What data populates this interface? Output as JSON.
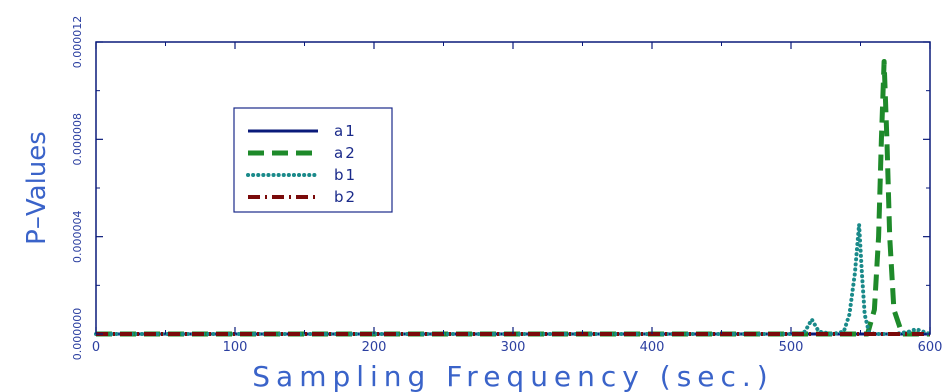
{
  "chart_data": {
    "type": "line",
    "title": "",
    "xlabel": "Sampling Frequency (sec.)",
    "ylabel": "P–Values",
    "xlim": [
      0,
      600
    ],
    "ylim": [
      0,
      1.2e-05
    ],
    "xticks": [
      0,
      100,
      200,
      300,
      400,
      500,
      600
    ],
    "xtick_labels": [
      "0",
      "100",
      "200",
      "300",
      "400",
      "500",
      "600"
    ],
    "yticks": [
      0,
      4e-06,
      8e-06,
      1.2e-05
    ],
    "ytick_labels": [
      "0.000000",
      "0.000004",
      "0.000008",
      "0.000012"
    ],
    "grid": false,
    "legend": "upper-left-inside",
    "series": [
      {
        "name": "a1",
        "color": "#0a1a7a",
        "dash": "solid",
        "x": [
          0,
          100,
          200,
          300,
          400,
          500,
          600
        ],
        "y": [
          0,
          0,
          0,
          0,
          0,
          0,
          0
        ]
      },
      {
        "name": "a2",
        "color": "#1e8a2a",
        "dash": "dashed",
        "x": [
          0,
          100,
          200,
          300,
          400,
          500,
          540,
          555,
          560,
          563,
          565,
          567,
          569,
          571,
          574,
          580,
          600
        ],
        "y": [
          0,
          0,
          0,
          0,
          0,
          0,
          0,
          0,
          1e-06,
          4e-06,
          8e-06,
          1.12e-05,
          8e-06,
          4e-06,
          1e-06,
          0,
          0
        ]
      },
      {
        "name": "b1",
        "color": "#1a8a8a",
        "dash": "dotted",
        "x": [
          0,
          100,
          200,
          300,
          400,
          500,
          505,
          510,
          515,
          520,
          530,
          538,
          542,
          546,
          549,
          551,
          553,
          556,
          560,
          565,
          575,
          585,
          590,
          595,
          600
        ],
        "y": [
          0,
          0,
          0,
          0,
          0,
          0,
          0,
          1e-07,
          6e-07,
          1e-07,
          0,
          1e-07,
          8e-07,
          2.5e-06,
          4.5e-06,
          2.5e-06,
          8e-07,
          1e-07,
          0,
          0,
          0,
          1e-07,
          2e-07,
          1e-07,
          0
        ]
      },
      {
        "name": "b2",
        "color": "#7a0a0a",
        "dash": "dashdot",
        "x": [
          0,
          100,
          200,
          300,
          400,
          500,
          600
        ],
        "y": [
          0,
          0,
          0,
          0,
          0,
          0,
          0
        ]
      }
    ]
  }
}
